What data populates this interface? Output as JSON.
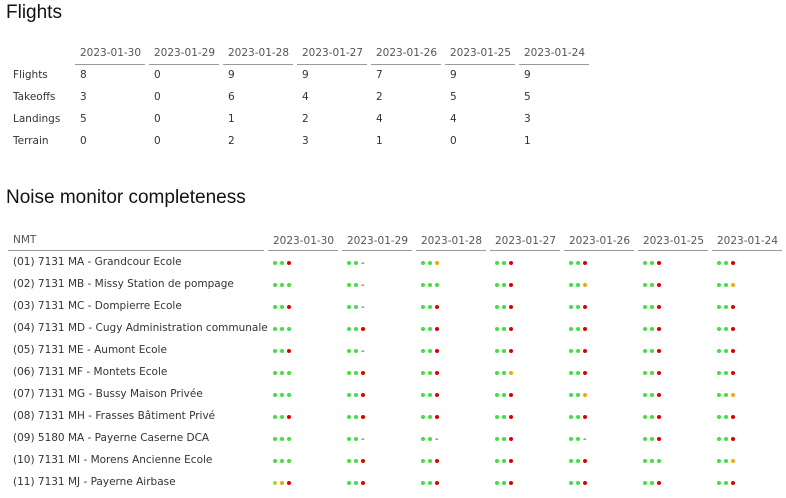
{
  "flights": {
    "title": "Flights",
    "columns": [
      "2023-01-30",
      "2023-01-29",
      "2023-01-28",
      "2023-01-27",
      "2023-01-26",
      "2023-01-25",
      "2023-01-24"
    ],
    "rows": [
      {
        "label": "Flights",
        "values": [
          8,
          0,
          9,
          9,
          7,
          9,
          9
        ]
      },
      {
        "label": "Takeoffs",
        "values": [
          3,
          0,
          6,
          4,
          2,
          5,
          5
        ]
      },
      {
        "label": "Landings",
        "values": [
          5,
          0,
          1,
          2,
          4,
          4,
          3
        ]
      },
      {
        "label": "Terrain",
        "values": [
          0,
          0,
          2,
          3,
          1,
          0,
          1
        ]
      }
    ]
  },
  "noise": {
    "title": "Noise monitor completeness",
    "header": "NMT",
    "columns": [
      "2023-01-30",
      "2023-01-29",
      "2023-01-28",
      "2023-01-27",
      "2023-01-26",
      "2023-01-25",
      "2023-01-24"
    ],
    "rows": [
      {
        "label": "(01) 7131 MA - Grandcour Ecole",
        "cells": [
          [
            "#4d4",
            "#4d4",
            "#d00"
          ],
          [
            "#4d4",
            "#4d4",
            "-"
          ],
          [
            "#4d4",
            "#4d4",
            "#ea0"
          ],
          [
            "#4d4",
            "#4d4",
            "#d00"
          ],
          [
            "#4d4",
            "#4d4",
            "#d00"
          ],
          [
            "#4d4",
            "#4d4",
            "#d00"
          ],
          [
            "#4d4",
            "#4d4",
            "#d00"
          ]
        ]
      },
      {
        "label": "(02) 7131 MB - Missy Station de pompage",
        "cells": [
          [
            "#4d4",
            "#4d4",
            "#4d4"
          ],
          [
            "#4d4",
            "#4d4",
            "-"
          ],
          [
            "#4d4",
            "#4d4",
            "#4d4"
          ],
          [
            "#4d4",
            "#4d4",
            "#d00"
          ],
          [
            "#4d4",
            "#4d4",
            "#ea0"
          ],
          [
            "#4d4",
            "#4d4",
            "#d00"
          ],
          [
            "#4d4",
            "#4d4",
            "#ea0"
          ]
        ]
      },
      {
        "label": "(03) 7131 MC - Dompierre Ecole",
        "cells": [
          [
            "#4d4",
            "#4d4",
            "#d00"
          ],
          [
            "#4d4",
            "#4d4",
            "-"
          ],
          [
            "#4d4",
            "#4d4",
            "#d00"
          ],
          [
            "#4d4",
            "#4d4",
            "#d00"
          ],
          [
            "#4d4",
            "#4d4",
            "#d00"
          ],
          [
            "#4d4",
            "#4d4",
            "#d00"
          ],
          [
            "#4d4",
            "#4d4",
            "#d00"
          ]
        ]
      },
      {
        "label": "(04) 7131 MD - Cugy Administration communale",
        "cells": [
          [
            "#4d4",
            "#4d4",
            "#4d4"
          ],
          [
            "#4d4",
            "#4d4",
            "#d00"
          ],
          [
            "#4d4",
            "#4d4",
            "#d00"
          ],
          [
            "#4d4",
            "#4d4",
            "#d00"
          ],
          [
            "#4d4",
            "#4d4",
            "#d00"
          ],
          [
            "#4d4",
            "#4d4",
            "#d00"
          ],
          [
            "#4d4",
            "#4d4",
            "#d00"
          ]
        ]
      },
      {
        "label": "(05) 7131 ME - Aumont Ecole",
        "cells": [
          [
            "#4d4",
            "#4d4",
            "#d00"
          ],
          [
            "#4d4",
            "#4d4",
            "-"
          ],
          [
            "#4d4",
            "#4d4",
            "#d00"
          ],
          [
            "#4d4",
            "#4d4",
            "#d00"
          ],
          [
            "#4d4",
            "#4d4",
            "#d00"
          ],
          [
            "#4d4",
            "#4d4",
            "#d00"
          ],
          [
            "#4d4",
            "#4d4",
            "#d00"
          ]
        ]
      },
      {
        "label": "(06) 7131 MF - Montets Ecole",
        "cells": [
          [
            "#4d4",
            "#4d4",
            "#4d4"
          ],
          [
            "#4d4",
            "#4d4",
            "#d00"
          ],
          [
            "#4d4",
            "#4d4",
            "#d00"
          ],
          [
            "#4d4",
            "#4d4",
            "#ea0"
          ],
          [
            "#4d4",
            "#4d4",
            "#d00"
          ],
          [
            "#4d4",
            "#4d4",
            "#d00"
          ],
          [
            "#4d4",
            "#4d4",
            "#d00"
          ]
        ]
      },
      {
        "label": "(07) 7131 MG - Bussy Maison Privée",
        "cells": [
          [
            "#4d4",
            "#4d4",
            "#4d4"
          ],
          [
            "#4d4",
            "#4d4",
            "#d00"
          ],
          [
            "#4d4",
            "#4d4",
            "#d00"
          ],
          [
            "#4d4",
            "#4d4",
            "#d00"
          ],
          [
            "#4d4",
            "#4d4",
            "#ea0"
          ],
          [
            "#4d4",
            "#4d4",
            "#d00"
          ],
          [
            "#4d4",
            "#4d4",
            "#ea0"
          ]
        ]
      },
      {
        "label": "(08) 7131 MH - Frasses Bâtiment Privé",
        "cells": [
          [
            "#4d4",
            "#4d4",
            "#d00"
          ],
          [
            "#4d4",
            "#4d4",
            "#d00"
          ],
          [
            "#4d4",
            "#4d4",
            "#d00"
          ],
          [
            "#4d4",
            "#4d4",
            "#d00"
          ],
          [
            "#4d4",
            "#4d4",
            "#d00"
          ],
          [
            "#4d4",
            "#4d4",
            "#d00"
          ],
          [
            "#4d4",
            "#4d4",
            "#d00"
          ]
        ]
      },
      {
        "label": "(09) 5180 MA - Payerne Caserne DCA",
        "cells": [
          [
            "#4d4",
            "#4d4",
            "#4d4"
          ],
          [
            "#4d4",
            "#4d4",
            "-"
          ],
          [
            "#4d4",
            "#4d4",
            "-"
          ],
          [
            "#4d4",
            "#4d4",
            "#d00"
          ],
          [
            "#4d4",
            "#4d4",
            "-"
          ],
          [
            "#4d4",
            "#4d4",
            "#d00"
          ],
          [
            "#4d4",
            "#4d4",
            "#d00"
          ]
        ]
      },
      {
        "label": "(10) 7131 MI - Morens Ancienne Ecole",
        "cells": [
          [
            "#4d4",
            "#4d4",
            "#4d4"
          ],
          [
            "#4d4",
            "#4d4",
            "#d00"
          ],
          [
            "#4d4",
            "#4d4",
            "#d00"
          ],
          [
            "#4d4",
            "#4d4",
            "#d00"
          ],
          [
            "#4d4",
            "#4d4",
            "#d00"
          ],
          [
            "#4d4",
            "#4d4",
            "#4d4"
          ],
          [
            "#4d4",
            "#4d4",
            "#ea0"
          ]
        ]
      },
      {
        "label": "(11) 7131 MJ - Payerne Airbase",
        "cells": [
          [
            "#bc3",
            "#ea0",
            "#d00"
          ],
          [
            "#4d4",
            "#4d4",
            "#d00"
          ],
          [
            "#4d4",
            "#4d4",
            "#d00"
          ],
          [
            "#4d4",
            "#4d4",
            "#d00"
          ],
          [
            "#4d4",
            "#4d4",
            "#d00"
          ],
          [
            "#4d4",
            "#4d4",
            "#d00"
          ],
          [
            "#4d4",
            "#4d4",
            "#d00"
          ]
        ]
      }
    ]
  }
}
